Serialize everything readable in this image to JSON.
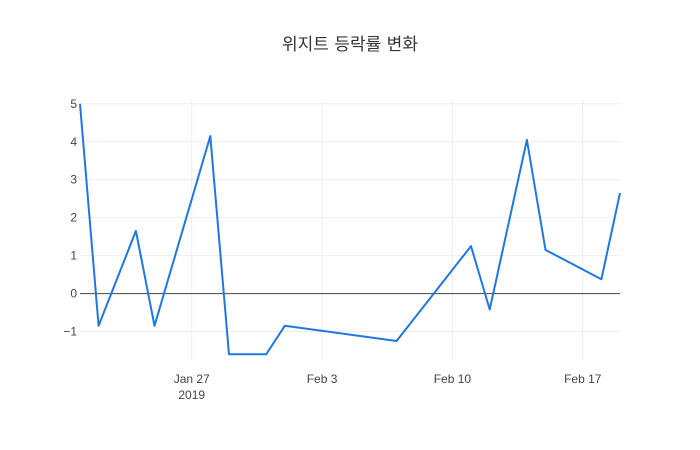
{
  "chart_data": {
    "type": "line",
    "title": "위지트 등락률 변화",
    "xlabel": "",
    "ylabel": "",
    "x_axis_kind": "date",
    "x_ticks": [
      {
        "date": "2019-01-27",
        "label": "Jan 27",
        "sublabel": "2019"
      },
      {
        "date": "2019-02-03",
        "label": "Feb 3",
        "sublabel": ""
      },
      {
        "date": "2019-02-10",
        "label": "Feb 10",
        "sublabel": ""
      },
      {
        "date": "2019-02-17",
        "label": "Feb 17",
        "sublabel": ""
      }
    ],
    "xlim": [
      "2019-01-21",
      "2019-02-19"
    ],
    "y_ticks": [
      -1,
      0,
      1,
      2,
      3,
      4,
      5
    ],
    "y_tick_labels": [
      "−1",
      "0",
      "1",
      "2",
      "3",
      "4",
      "5"
    ],
    "ylim": [
      -1.75,
      5.1
    ],
    "grid": true,
    "zero_line": true,
    "series": [
      {
        "color": "#1f77e4",
        "x": [
          "2019-01-21",
          "2019-01-22",
          "2019-01-24",
          "2019-01-25",
          "2019-01-28",
          "2019-01-29",
          "2019-01-31",
          "2019-02-01",
          "2019-02-07",
          "2019-02-11",
          "2019-02-12",
          "2019-02-14",
          "2019-02-15",
          "2019-02-18",
          "2019-02-19"
        ],
        "y": [
          5.0,
          -0.85,
          1.65,
          -0.85,
          4.15,
          -1.6,
          -1.6,
          -0.85,
          -1.25,
          1.25,
          -0.42,
          4.05,
          1.15,
          0.38,
          2.65
        ]
      }
    ]
  }
}
